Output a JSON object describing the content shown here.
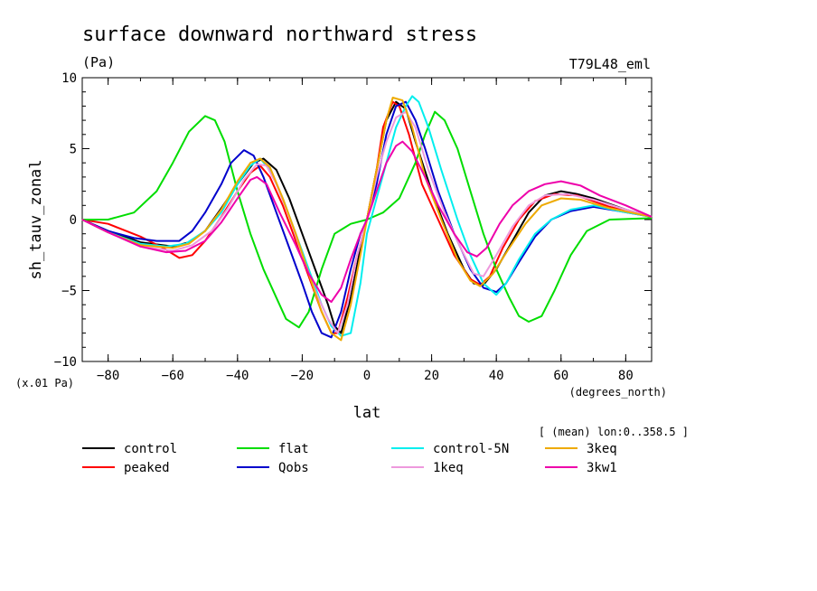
{
  "chart_data": {
    "type": "line",
    "title": "surface downward northward stress",
    "units": "(Pa)",
    "run_label": "T79L48_eml",
    "ylabel": "sh_tauv_zonal",
    "xlabel": "lat",
    "x_units": "(degrees_north)",
    "y_scale_note": "(x.01 Pa)",
    "mean_note": "[ (mean) lon:0..358.5 ]",
    "xlim": [
      -88,
      88
    ],
    "ylim": [
      -10,
      10
    ],
    "x_ticks": [
      -80,
      -60,
      -40,
      -20,
      0,
      20,
      40,
      60,
      80
    ],
    "y_ticks": [
      -10,
      -5,
      0,
      5,
      10
    ],
    "grid": false,
    "legend_position": "bottom",
    "series": [
      {
        "name": "control",
        "color": "#000000",
        "points": [
          [
            -88,
            0
          ],
          [
            -80,
            -0.8
          ],
          [
            -70,
            -1.6
          ],
          [
            -60,
            -1.9
          ],
          [
            -55,
            -1.6
          ],
          [
            -50,
            -0.8
          ],
          [
            -45,
            0.8
          ],
          [
            -40,
            2.5
          ],
          [
            -35,
            4.0
          ],
          [
            -32,
            4.3
          ],
          [
            -28,
            3.5
          ],
          [
            -24,
            1.5
          ],
          [
            -20,
            -1.0
          ],
          [
            -16,
            -3.5
          ],
          [
            -12,
            -6.0
          ],
          [
            -10,
            -7.5
          ],
          [
            -8,
            -8.0
          ],
          [
            -5,
            -5.5
          ],
          [
            -2,
            -2.0
          ],
          [
            0,
            0
          ],
          [
            3,
            3.5
          ],
          [
            6,
            7.0
          ],
          [
            9,
            8.3
          ],
          [
            12,
            7.8
          ],
          [
            15,
            5.5
          ],
          [
            20,
            2.0
          ],
          [
            25,
            -1.0
          ],
          [
            30,
            -3.5
          ],
          [
            33,
            -4.5
          ],
          [
            36,
            -4.6
          ],
          [
            40,
            -3.5
          ],
          [
            45,
            -1.5
          ],
          [
            50,
            0.5
          ],
          [
            55,
            1.7
          ],
          [
            60,
            2.0
          ],
          [
            65,
            1.8
          ],
          [
            70,
            1.5
          ],
          [
            80,
            0.7
          ],
          [
            88,
            0.2
          ]
        ]
      },
      {
        "name": "peaked",
        "color": "#ff0000",
        "points": [
          [
            -88,
            0
          ],
          [
            -80,
            -0.3
          ],
          [
            -70,
            -1.2
          ],
          [
            -63,
            -2.0
          ],
          [
            -58,
            -2.7
          ],
          [
            -54,
            -2.5
          ],
          [
            -50,
            -1.5
          ],
          [
            -45,
            0.2
          ],
          [
            -40,
            2.0
          ],
          [
            -36,
            3.3
          ],
          [
            -33,
            3.8
          ],
          [
            -30,
            3.0
          ],
          [
            -26,
            1.0
          ],
          [
            -22,
            -1.5
          ],
          [
            -18,
            -4.0
          ],
          [
            -14,
            -6.5
          ],
          [
            -11,
            -8.0
          ],
          [
            -9,
            -8.0
          ],
          [
            -6,
            -5.5
          ],
          [
            -3,
            -2.5
          ],
          [
            0,
            0
          ],
          [
            3,
            3.5
          ],
          [
            5,
            6.5
          ],
          [
            8,
            8.3
          ],
          [
            10,
            8.0
          ],
          [
            13,
            6.0
          ],
          [
            17,
            2.5
          ],
          [
            22,
            0
          ],
          [
            27,
            -2.5
          ],
          [
            32,
            -4.2
          ],
          [
            35,
            -4.6
          ],
          [
            38,
            -4.0
          ],
          [
            42,
            -2.0
          ],
          [
            47,
            0
          ],
          [
            52,
            1.3
          ],
          [
            58,
            1.8
          ],
          [
            65,
            1.7
          ],
          [
            75,
            0.9
          ],
          [
            88,
            0.2
          ]
        ]
      },
      {
        "name": "flat",
        "color": "#00dd00",
        "points": [
          [
            -88,
            0
          ],
          [
            -80,
            0
          ],
          [
            -72,
            0.5
          ],
          [
            -65,
            2.0
          ],
          [
            -60,
            4.0
          ],
          [
            -55,
            6.2
          ],
          [
            -50,
            7.3
          ],
          [
            -47,
            7.0
          ],
          [
            -44,
            5.5
          ],
          [
            -40,
            2.0
          ],
          [
            -36,
            -1.0
          ],
          [
            -32,
            -3.5
          ],
          [
            -28,
            -5.5
          ],
          [
            -25,
            -7.0
          ],
          [
            -21,
            -7.6
          ],
          [
            -18,
            -6.5
          ],
          [
            -14,
            -3.5
          ],
          [
            -10,
            -1.0
          ],
          [
            -5,
            -0.3
          ],
          [
            0,
            0
          ],
          [
            5,
            0.5
          ],
          [
            10,
            1.5
          ],
          [
            15,
            4.0
          ],
          [
            18,
            6.0
          ],
          [
            21,
            7.6
          ],
          [
            24,
            7.0
          ],
          [
            28,
            5.0
          ],
          [
            32,
            2.0
          ],
          [
            36,
            -1.0
          ],
          [
            40,
            -3.5
          ],
          [
            44,
            -5.5
          ],
          [
            47,
            -6.8
          ],
          [
            50,
            -7.2
          ],
          [
            54,
            -6.8
          ],
          [
            58,
            -5.0
          ],
          [
            63,
            -2.5
          ],
          [
            68,
            -0.8
          ],
          [
            75,
            0
          ],
          [
            88,
            0.1
          ]
        ]
      },
      {
        "name": "Qobs",
        "color": "#0000cc",
        "points": [
          [
            -88,
            0
          ],
          [
            -80,
            -0.8
          ],
          [
            -72,
            -1.3
          ],
          [
            -65,
            -1.5
          ],
          [
            -58,
            -1.5
          ],
          [
            -54,
            -0.8
          ],
          [
            -50,
            0.5
          ],
          [
            -45,
            2.5
          ],
          [
            -42,
            4.0
          ],
          [
            -38,
            4.9
          ],
          [
            -35,
            4.5
          ],
          [
            -32,
            3.0
          ],
          [
            -28,
            0.5
          ],
          [
            -24,
            -2.0
          ],
          [
            -20,
            -4.5
          ],
          [
            -17,
            -6.5
          ],
          [
            -14,
            -8.0
          ],
          [
            -11,
            -8.3
          ],
          [
            -8,
            -6.5
          ],
          [
            -5,
            -3.5
          ],
          [
            -2,
            -1.0
          ],
          [
            0,
            0
          ],
          [
            3,
            2.5
          ],
          [
            6,
            6.0
          ],
          [
            9,
            8.0
          ],
          [
            12,
            8.3
          ],
          [
            15,
            7.0
          ],
          [
            18,
            5.0
          ],
          [
            22,
            2.0
          ],
          [
            27,
            -1.0
          ],
          [
            32,
            -3.5
          ],
          [
            36,
            -4.8
          ],
          [
            40,
            -5.1
          ],
          [
            43,
            -4.5
          ],
          [
            47,
            -3.0
          ],
          [
            52,
            -1.2
          ],
          [
            57,
            0
          ],
          [
            63,
            0.6
          ],
          [
            70,
            0.9
          ],
          [
            78,
            0.6
          ],
          [
            88,
            0.2
          ]
        ]
      },
      {
        "name": "control-5N",
        "color": "#00eeee",
        "points": [
          [
            -88,
            0
          ],
          [
            -80,
            -0.9
          ],
          [
            -70,
            -1.7
          ],
          [
            -62,
            -1.9
          ],
          [
            -56,
            -1.7
          ],
          [
            -50,
            -0.8
          ],
          [
            -45,
            0.5
          ],
          [
            -40,
            2.5
          ],
          [
            -36,
            3.8
          ],
          [
            -33,
            4.3
          ],
          [
            -30,
            3.5
          ],
          [
            -26,
            1.5
          ],
          [
            -22,
            -1.0
          ],
          [
            -18,
            -3.5
          ],
          [
            -14,
            -6.0
          ],
          [
            -11,
            -7.5
          ],
          [
            -8,
            -8.2
          ],
          [
            -5,
            -8.0
          ],
          [
            -2,
            -4.5
          ],
          [
            0,
            -1.0
          ],
          [
            3,
            1.5
          ],
          [
            6,
            4.0
          ],
          [
            9,
            6.5
          ],
          [
            12,
            8.0
          ],
          [
            14,
            8.7
          ],
          [
            16,
            8.3
          ],
          [
            19,
            6.5
          ],
          [
            23,
            3.5
          ],
          [
            28,
            0
          ],
          [
            32,
            -2.5
          ],
          [
            36,
            -4.5
          ],
          [
            40,
            -5.3
          ],
          [
            43,
            -4.5
          ],
          [
            47,
            -2.8
          ],
          [
            52,
            -1.0
          ],
          [
            57,
            0
          ],
          [
            63,
            0.7
          ],
          [
            70,
            1.0
          ],
          [
            78,
            0.6
          ],
          [
            88,
            0.2
          ]
        ]
      },
      {
        "name": "1keq",
        "color": "#ee99dd",
        "points": [
          [
            -88,
            0
          ],
          [
            -80,
            -0.9
          ],
          [
            -70,
            -1.9
          ],
          [
            -60,
            -2.2
          ],
          [
            -54,
            -1.8
          ],
          [
            -48,
            -0.8
          ],
          [
            -43,
            0.8
          ],
          [
            -38,
            2.8
          ],
          [
            -34,
            3.9
          ],
          [
            -31,
            3.8
          ],
          [
            -28,
            2.5
          ],
          [
            -24,
            0.2
          ],
          [
            -20,
            -2.5
          ],
          [
            -16,
            -5.0
          ],
          [
            -12,
            -7.0
          ],
          [
            -9,
            -8.0
          ],
          [
            -6,
            -6.0
          ],
          [
            -3,
            -2.5
          ],
          [
            0,
            0
          ],
          [
            3,
            3.0
          ],
          [
            6,
            5.5
          ],
          [
            9,
            7.2
          ],
          [
            12,
            7.6
          ],
          [
            15,
            6.5
          ],
          [
            19,
            3.5
          ],
          [
            24,
            0.5
          ],
          [
            29,
            -2.0
          ],
          [
            33,
            -3.8
          ],
          [
            36,
            -4.0
          ],
          [
            40,
            -2.5
          ],
          [
            45,
            -0.5
          ],
          [
            50,
            1.0
          ],
          [
            55,
            1.7
          ],
          [
            62,
            1.8
          ],
          [
            70,
            1.4
          ],
          [
            80,
            0.7
          ],
          [
            88,
            0.2
          ]
        ]
      },
      {
        "name": "3keq",
        "color": "#eeaa00",
        "points": [
          [
            -88,
            0
          ],
          [
            -80,
            -0.9
          ],
          [
            -70,
            -1.8
          ],
          [
            -60,
            -2.0
          ],
          [
            -55,
            -1.7
          ],
          [
            -50,
            -0.8
          ],
          [
            -45,
            0.7
          ],
          [
            -40,
            2.7
          ],
          [
            -36,
            4.0
          ],
          [
            -33,
            4.3
          ],
          [
            -30,
            3.7
          ],
          [
            -26,
            1.5
          ],
          [
            -22,
            -1.0
          ],
          [
            -18,
            -3.8
          ],
          [
            -14,
            -6.5
          ],
          [
            -11,
            -8.0
          ],
          [
            -8,
            -8.5
          ],
          [
            -5,
            -6.0
          ],
          [
            -2,
            -2.5
          ],
          [
            0,
            0
          ],
          [
            3,
            3.5
          ],
          [
            6,
            7.0
          ],
          [
            8,
            8.6
          ],
          [
            11,
            8.4
          ],
          [
            14,
            6.5
          ],
          [
            18,
            3.0
          ],
          [
            23,
            0
          ],
          [
            28,
            -2.8
          ],
          [
            32,
            -4.3
          ],
          [
            35,
            -4.7
          ],
          [
            39,
            -3.8
          ],
          [
            44,
            -2.0
          ],
          [
            49,
            -0.3
          ],
          [
            54,
            1.0
          ],
          [
            60,
            1.5
          ],
          [
            66,
            1.4
          ],
          [
            75,
            0.8
          ],
          [
            88,
            0.2
          ]
        ]
      },
      {
        "name": "3kw1",
        "color": "#ee00aa",
        "points": [
          [
            -88,
            0
          ],
          [
            -80,
            -0.9
          ],
          [
            -70,
            -1.9
          ],
          [
            -62,
            -2.3
          ],
          [
            -56,
            -2.2
          ],
          [
            -50,
            -1.5
          ],
          [
            -45,
            -0.2
          ],
          [
            -40,
            1.5
          ],
          [
            -36,
            2.8
          ],
          [
            -34,
            3.0
          ],
          [
            -31,
            2.5
          ],
          [
            -27,
            0.5
          ],
          [
            -22,
            -1.8
          ],
          [
            -18,
            -3.8
          ],
          [
            -14,
            -5.3
          ],
          [
            -11,
            -5.8
          ],
          [
            -8,
            -4.8
          ],
          [
            -5,
            -2.8
          ],
          [
            -2,
            -1.0
          ],
          [
            0,
            0
          ],
          [
            3,
            2.0
          ],
          [
            6,
            4.0
          ],
          [
            9,
            5.2
          ],
          [
            11,
            5.5
          ],
          [
            14,
            4.8
          ],
          [
            18,
            3.0
          ],
          [
            22,
            1.0
          ],
          [
            27,
            -1.0
          ],
          [
            31,
            -2.3
          ],
          [
            34,
            -2.6
          ],
          [
            37,
            -2.0
          ],
          [
            41,
            -0.3
          ],
          [
            45,
            1.0
          ],
          [
            50,
            2.0
          ],
          [
            55,
            2.5
          ],
          [
            60,
            2.7
          ],
          [
            66,
            2.4
          ],
          [
            72,
            1.7
          ],
          [
            80,
            1.0
          ],
          [
            88,
            0.2
          ]
        ]
      }
    ]
  }
}
